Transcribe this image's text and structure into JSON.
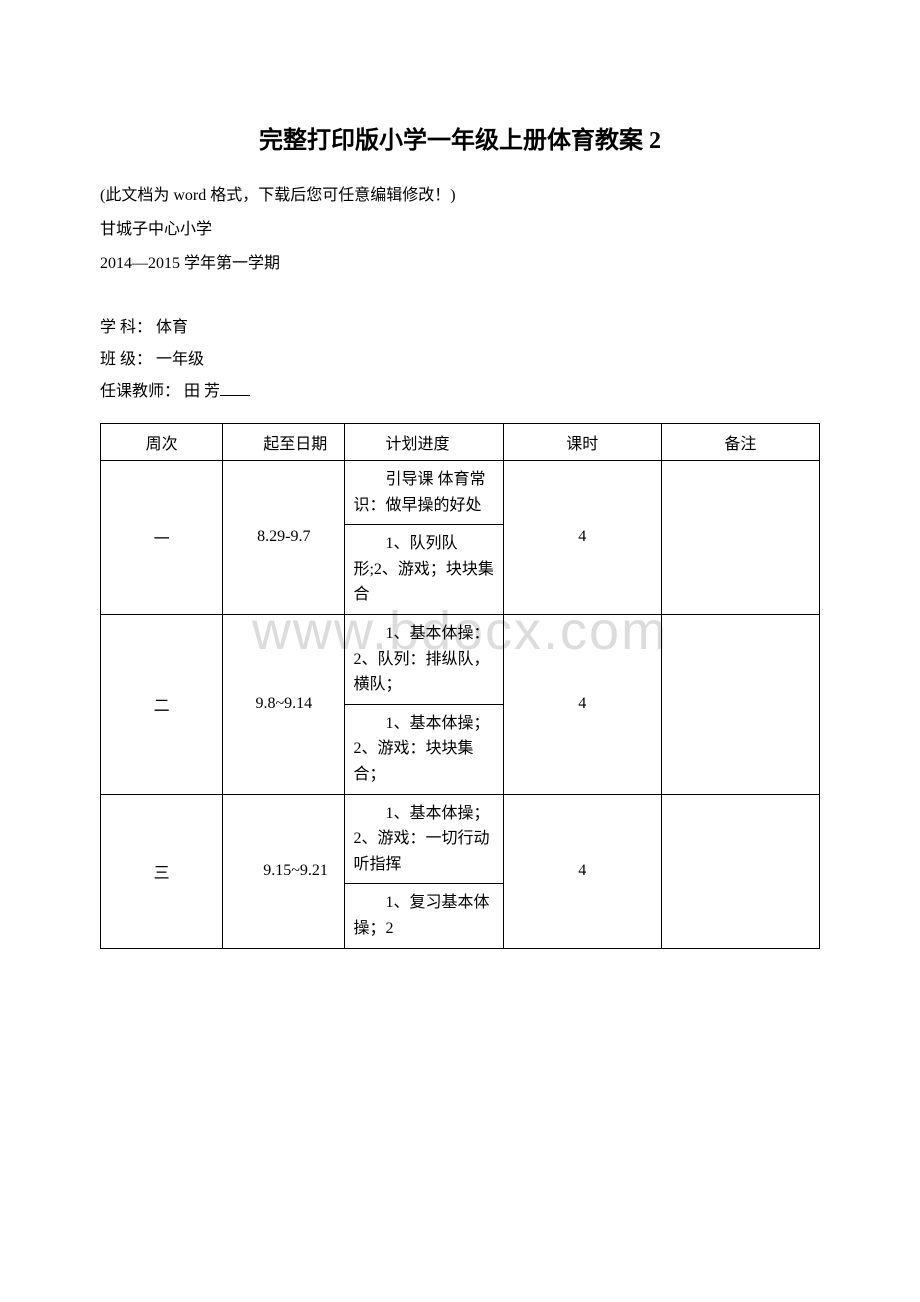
{
  "watermark": "www.bdocx.com",
  "title": "完整打印版小学一年级上册体育教案 2",
  "meta": {
    "note": "(此文档为 word 格式，下载后您可任意编辑修改！)",
    "school": "甘城子中心小学",
    "semester": "2014—2015 学年第一学期"
  },
  "info": {
    "subject_label": "学 科：",
    "subject_value": " 体育",
    "class_label": "班 级：",
    "class_value": " 一年级",
    "teacher_label": "任课教师：",
    "teacher_value": " 田 芳"
  },
  "table": {
    "headers": {
      "week": "周次",
      "date": "起至日期",
      "plan": "计划进度",
      "hours": "课时",
      "note": "备注"
    },
    "rows": [
      {
        "week": "一",
        "date": "8.29-9.7",
        "plans": [
          "引导课 体育常识：做早操的好处",
          "1、队列队形;2、游戏；块块集合"
        ],
        "hours": "4",
        "note": ""
      },
      {
        "week": "二",
        "date": "9.8~9.14",
        "plans": [
          "1、基本体操：2、队列：排纵队，横队；",
          "1、基本体操；2、游戏：块块集合；"
        ],
        "hours": "4",
        "note": ""
      },
      {
        "week": "三",
        "date": "9.15~9.21",
        "plans": [
          "1、基本体操；2、游戏：一切行动听指挥",
          "1、复习基本体操；2"
        ],
        "hours": "4",
        "note": ""
      }
    ]
  }
}
